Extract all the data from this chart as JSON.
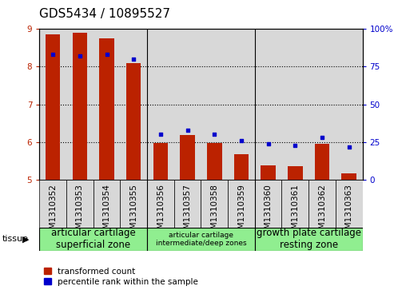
{
  "title": "GDS5434 / 10895527",
  "samples": [
    "GSM1310352",
    "GSM1310353",
    "GSM1310354",
    "GSM1310355",
    "GSM1310356",
    "GSM1310357",
    "GSM1310358",
    "GSM1310359",
    "GSM1310360",
    "GSM1310361",
    "GSM1310362",
    "GSM1310363"
  ],
  "transformed_count": [
    8.85,
    8.9,
    8.75,
    8.1,
    5.97,
    6.18,
    5.97,
    5.68,
    5.38,
    5.37,
    5.95,
    5.18
  ],
  "percentile_rank": [
    83,
    82,
    83,
    80,
    30,
    33,
    30,
    26,
    24,
    23,
    28,
    22
  ],
  "ylim_left": [
    5,
    9
  ],
  "ylim_right": [
    0,
    100
  ],
  "yticks_left": [
    5,
    6,
    7,
    8,
    9
  ],
  "yticks_right": [
    0,
    25,
    50,
    75,
    100
  ],
  "bar_color": "#bb2200",
  "dot_color": "#0000cc",
  "background_plot": "#ffffff",
  "cell_bg": "#d8d8d8",
  "grid_color": "#000000",
  "tissue_groups": [
    {
      "label": "articular cartilage\nsuperficial zone",
      "start": 0,
      "end": 3,
      "color": "#90ee90",
      "fontsize": 8.5
    },
    {
      "label": "articular cartilage\nintermediate/deep zones",
      "start": 4,
      "end": 7,
      "color": "#90ee90",
      "fontsize": 6.5
    },
    {
      "label": "growth plate cartilage\nresting zone",
      "start": 8,
      "end": 11,
      "color": "#90ee90",
      "fontsize": 8.5
    }
  ],
  "legend_items": [
    {
      "label": "transformed count",
      "color": "#bb2200"
    },
    {
      "label": "percentile rank within the sample",
      "color": "#0000cc"
    }
  ],
  "tissue_label": "tissue",
  "title_fontsize": 11,
  "tick_fontsize": 7.5,
  "label_fontsize": 8,
  "group_separators": [
    3.5,
    7.5
  ]
}
